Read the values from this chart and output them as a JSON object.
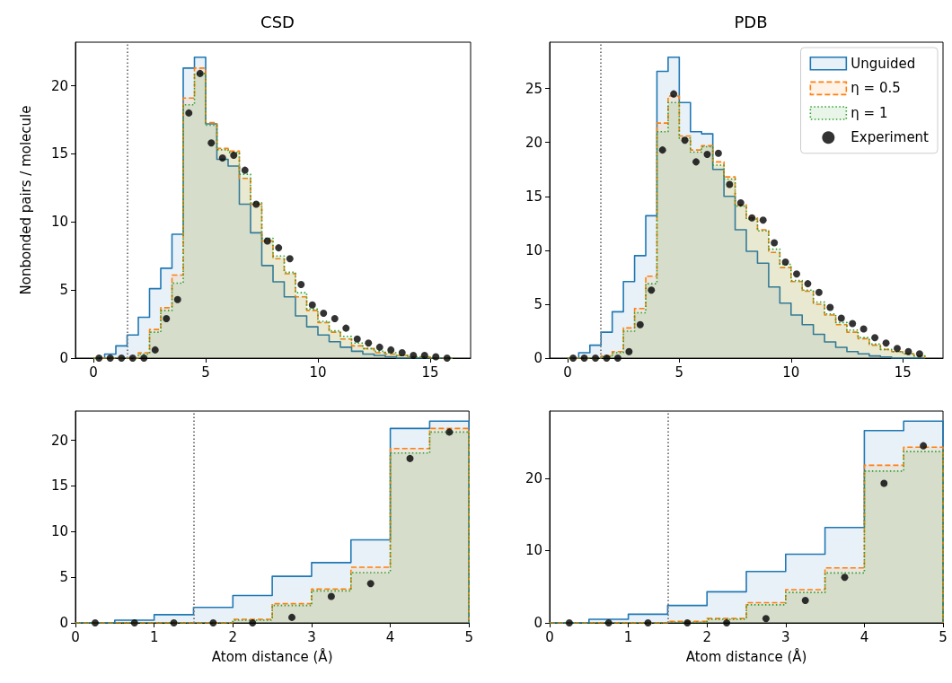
{
  "chart_data": [
    {
      "type": "histogram",
      "title": "CSD",
      "ylabel": "Nonbonded pairs / molecule",
      "bins": [
        0,
        0.5,
        1,
        1.5,
        2,
        2.5,
        3,
        3.5,
        4,
        4.5,
        5,
        5.5,
        6,
        6.5,
        7,
        7.5,
        8,
        8.5,
        9,
        9.5,
        10,
        10.5,
        11,
        11.5,
        12,
        12.5,
        13,
        13.5,
        14,
        14.5,
        15,
        15.5,
        16
      ],
      "xlim": [
        -0.8,
        16.8
      ],
      "xticks": [
        0,
        5,
        10,
        15
      ],
      "ylim": [
        0,
        23.2
      ],
      "yticks": [
        0,
        5,
        10,
        15,
        20
      ],
      "legend": false,
      "ref_lines": [
        {
          "axis": "x",
          "value": 1.5,
          "color": "#808080",
          "line_style": "dotted"
        }
      ],
      "series": [
        {
          "color": "#1f77b4",
          "line_style": "solid",
          "values": [
            0,
            0.3,
            0.9,
            1.7,
            3.0,
            5.1,
            6.6,
            9.1,
            21.3,
            22.1,
            17.2,
            14.6,
            14.1,
            11.3,
            9.2,
            6.8,
            5.6,
            4.5,
            3.1,
            2.3,
            1.7,
            1.2,
            0.8,
            0.5,
            0.3,
            0.2,
            0.1,
            0,
            0,
            0,
            0,
            0
          ]
        },
        {
          "color": "#ff7f0e",
          "line_style": "dashed",
          "values": [
            0,
            0,
            0,
            0,
            0.4,
            2.1,
            3.7,
            6.1,
            19.1,
            21.3,
            17.3,
            15.4,
            15.2,
            13.2,
            11.3,
            8.6,
            7.3,
            6.2,
            4.5,
            3.5,
            2.6,
            1.9,
            1.4,
            0.9,
            0.7,
            0.4,
            0.3,
            0.2,
            0.1,
            0.1,
            0,
            0
          ]
        },
        {
          "color": "#2ca02c",
          "line_style": "dotted",
          "values": [
            0,
            0,
            0,
            0,
            0.3,
            1.9,
            3.5,
            5.5,
            18.6,
            20.9,
            17.1,
            15.3,
            15.1,
            13.5,
            11.4,
            8.8,
            7.5,
            6.3,
            4.8,
            3.6,
            2.7,
            2.0,
            1.6,
            1.1,
            0.7,
            0.5,
            0.4,
            0.2,
            0.1,
            0.1,
            0,
            0
          ]
        },
        {
          "type": "scatter",
          "marker": "circle",
          "color": "#000000",
          "x": [
            0.25,
            0.75,
            1.25,
            1.75,
            2.25,
            2.75,
            3.25,
            3.75,
            4.25,
            4.75,
            5.25,
            5.75,
            6.25,
            6.75,
            7.25,
            7.75,
            8.25,
            8.75,
            9.25,
            9.75,
            10.25,
            10.75,
            11.25,
            11.75,
            12.25,
            12.75,
            13.25,
            13.75,
            14.25,
            14.75,
            15.25,
            15.75
          ],
          "values": [
            0,
            0,
            0,
            0,
            0,
            0.6,
            2.9,
            4.3,
            18.0,
            20.9,
            15.8,
            14.7,
            14.9,
            13.8,
            11.3,
            8.6,
            8.1,
            7.3,
            5.4,
            3.9,
            3.3,
            2.9,
            2.2,
            1.4,
            1.1,
            0.8,
            0.6,
            0.4,
            0.2,
            0.2,
            0.1,
            0
          ]
        }
      ]
    },
    {
      "type": "histogram",
      "title": "PDB",
      "bins": [
        0,
        0.5,
        1,
        1.5,
        2,
        2.5,
        3,
        3.5,
        4,
        4.5,
        5,
        5.5,
        6,
        6.5,
        7,
        7.5,
        8,
        8.5,
        9,
        9.5,
        10,
        10.5,
        11,
        11.5,
        12,
        12.5,
        13,
        13.5,
        14,
        14.5,
        15,
        15.5,
        16
      ],
      "xlim": [
        -0.8,
        16.8
      ],
      "xticks": [
        0,
        5,
        10,
        15
      ],
      "ylim": [
        0,
        29.3
      ],
      "yticks": [
        0,
        5,
        10,
        15,
        20,
        25
      ],
      "legend": "top right",
      "ref_lines": [
        {
          "axis": "x",
          "value": 1.5,
          "color": "#808080",
          "line_style": "dotted"
        }
      ],
      "series": [
        {
          "name": "Unguided",
          "color": "#1f77b4",
          "line_style": "solid",
          "values": [
            0,
            0.5,
            1.2,
            2.4,
            4.3,
            7.1,
            9.5,
            13.2,
            26.6,
            27.9,
            23.7,
            21.0,
            20.8,
            17.5,
            15.0,
            11.9,
            9.9,
            8.8,
            6.6,
            5.1,
            4.0,
            3.1,
            2.2,
            1.5,
            1.0,
            0.6,
            0.4,
            0.2,
            0.1,
            0,
            0,
            0
          ]
        },
        {
          "name": "η = 0.5",
          "color": "#ff7f0e",
          "line_style": "dashed",
          "values": [
            0,
            0,
            0,
            0.2,
            0.6,
            2.8,
            4.6,
            7.6,
            21.8,
            24.3,
            20.6,
            19.3,
            19.7,
            18.2,
            16.8,
            14.2,
            13.0,
            11.9,
            9.8,
            8.4,
            7.1,
            6.2,
            5.0,
            4.0,
            3.1,
            2.4,
            1.8,
            1.2,
            0.8,
            0.6,
            0.4,
            0.2
          ]
        },
        {
          "name": "η = 1",
          "color": "#2ca02c",
          "line_style": "dotted",
          "values": [
            0,
            0,
            0,
            0.1,
            0.5,
            2.5,
            4.2,
            6.9,
            21.0,
            23.7,
            20.4,
            19.1,
            19.6,
            17.9,
            16.6,
            14.1,
            12.9,
            11.8,
            10.1,
            8.7,
            7.2,
            6.3,
            5.2,
            4.1,
            3.3,
            2.6,
            1.9,
            1.3,
            0.8,
            0.6,
            0.4,
            0.2
          ]
        },
        {
          "name": "Experiment",
          "type": "scatter",
          "marker": "circle",
          "color": "#000000",
          "x": [
            0.25,
            0.75,
            1.25,
            1.75,
            2.25,
            2.75,
            3.25,
            3.75,
            4.25,
            4.75,
            5.25,
            5.75,
            6.25,
            6.75,
            7.25,
            7.75,
            8.25,
            8.75,
            9.25,
            9.75,
            10.25,
            10.75,
            11.25,
            11.75,
            12.25,
            12.75,
            13.25,
            13.75,
            14.25,
            14.75,
            15.25,
            15.75
          ],
          "values": [
            0,
            0,
            0,
            0,
            0,
            0.6,
            3.1,
            6.3,
            19.3,
            24.5,
            20.2,
            18.2,
            18.9,
            19.0,
            16.1,
            14.4,
            13.0,
            12.8,
            10.7,
            8.9,
            7.8,
            6.9,
            6.1,
            4.7,
            3.7,
            3.2,
            2.7,
            1.9,
            1.4,
            0.9,
            0.6,
            0.4
          ]
        }
      ]
    },
    {
      "type": "histogram",
      "xlabel": "Atom distance (Å)",
      "bins": [
        0,
        0.5,
        1,
        1.5,
        2,
        2.5,
        3,
        3.5,
        4,
        4.5,
        5
      ],
      "xlim": [
        0,
        5
      ],
      "xticks": [
        0,
        1,
        2,
        3,
        4,
        5
      ],
      "ylim": [
        0,
        23.2
      ],
      "yticks": [
        0,
        5,
        10,
        15,
        20
      ],
      "legend": false,
      "ref_lines": [
        {
          "axis": "x",
          "value": 1.5,
          "color": "#808080",
          "line_style": "dotted"
        }
      ],
      "series": [
        {
          "color": "#1f77b4",
          "line_style": "solid",
          "values": [
            0,
            0.3,
            0.9,
            1.7,
            3.0,
            5.1,
            6.6,
            9.1,
            21.3,
            22.1
          ]
        },
        {
          "color": "#ff7f0e",
          "line_style": "dashed",
          "values": [
            0,
            0,
            0,
            0,
            0.4,
            2.1,
            3.7,
            6.1,
            19.1,
            21.3
          ]
        },
        {
          "color": "#2ca02c",
          "line_style": "dotted",
          "values": [
            0,
            0,
            0,
            0,
            0.3,
            1.9,
            3.5,
            5.5,
            18.6,
            20.9
          ]
        },
        {
          "type": "scatter",
          "marker": "circle",
          "color": "#000000",
          "x": [
            0.25,
            0.75,
            1.25,
            1.75,
            2.25,
            2.75,
            3.25,
            3.75,
            4.25,
            4.75
          ],
          "values": [
            0,
            0,
            0,
            0,
            0,
            0.6,
            2.9,
            4.3,
            18.0,
            20.9
          ]
        }
      ]
    },
    {
      "type": "histogram",
      "xlabel": "Atom distance (Å)",
      "bins": [
        0,
        0.5,
        1,
        1.5,
        2,
        2.5,
        3,
        3.5,
        4,
        4.5,
        5
      ],
      "xlim": [
        0,
        5
      ],
      "xticks": [
        0,
        1,
        2,
        3,
        4,
        5
      ],
      "ylim": [
        0,
        29.3
      ],
      "yticks": [
        0,
        10,
        20
      ],
      "legend": false,
      "ref_lines": [
        {
          "axis": "x",
          "value": 1.5,
          "color": "#808080",
          "line_style": "dotted"
        }
      ],
      "series": [
        {
          "color": "#1f77b4",
          "line_style": "solid",
          "values": [
            0,
            0.5,
            1.2,
            2.4,
            4.3,
            7.1,
            9.5,
            13.2,
            26.6,
            27.9
          ]
        },
        {
          "color": "#ff7f0e",
          "line_style": "dashed",
          "values": [
            0,
            0,
            0,
            0.2,
            0.6,
            2.8,
            4.6,
            7.6,
            21.8,
            24.3
          ]
        },
        {
          "color": "#2ca02c",
          "line_style": "dotted",
          "values": [
            0,
            0,
            0,
            0.1,
            0.5,
            2.5,
            4.2,
            6.9,
            21.0,
            23.7
          ]
        },
        {
          "type": "scatter",
          "marker": "circle",
          "color": "#000000",
          "x": [
            0.25,
            0.75,
            1.25,
            1.75,
            2.25,
            2.75,
            3.25,
            3.75,
            4.25,
            4.75
          ],
          "values": [
            0,
            0,
            0,
            0,
            0,
            0.6,
            3.1,
            6.3,
            19.3,
            24.5
          ]
        }
      ]
    }
  ]
}
